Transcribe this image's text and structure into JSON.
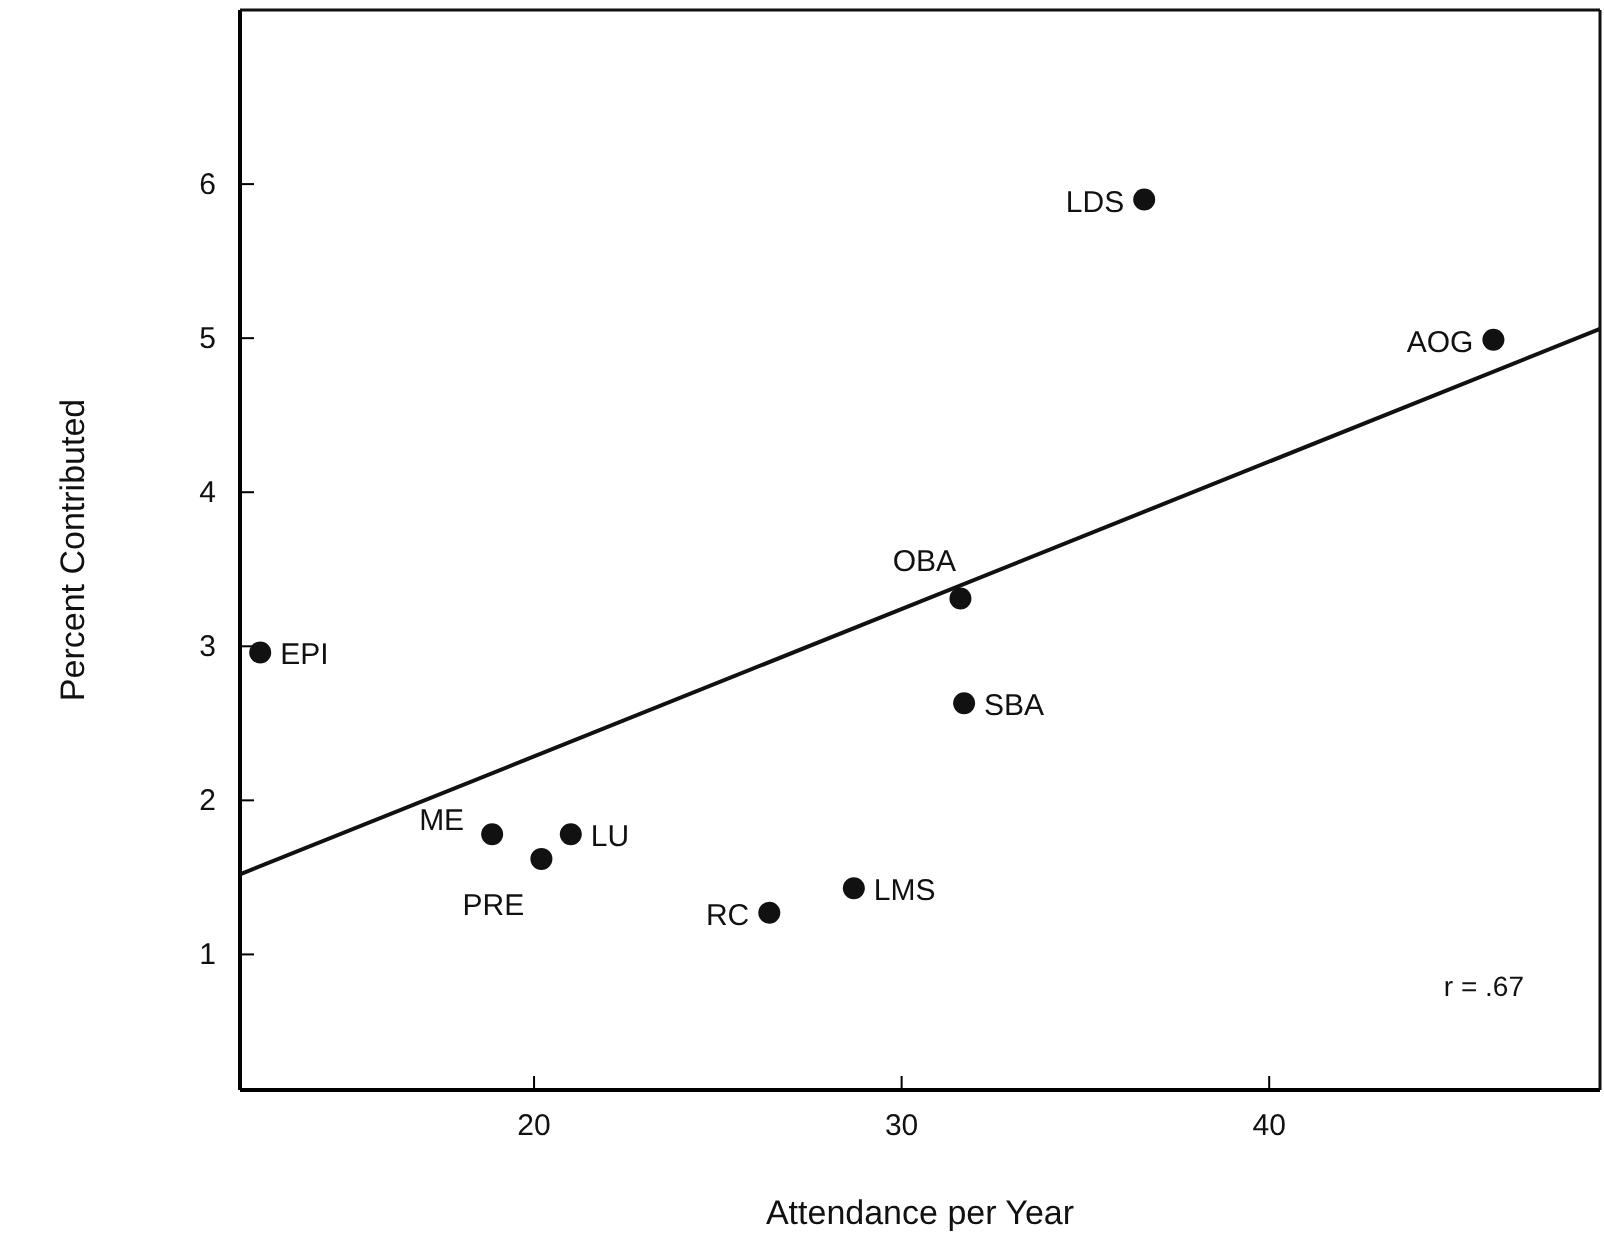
{
  "chart_data": {
    "type": "scatter",
    "xlabel": "Attendance per Year",
    "ylabel": "Percent Contributed",
    "xlim": [
      12,
      49
    ],
    "ylim": [
      0.12,
      7.13
    ],
    "xticks": [
      20,
      30,
      40
    ],
    "yticks": [
      1,
      2,
      3,
      4,
      5,
      6
    ],
    "marker": "circle",
    "grid": false,
    "series": [
      {
        "color": "#111111",
        "x": [
          36.6,
          46.1,
          31.6,
          31.7,
          12.55,
          18.86,
          21.0,
          20.2,
          26.4,
          28.7
        ],
        "values": [
          5.9,
          4.99,
          3.31,
          2.63,
          2.96,
          1.78,
          1.78,
          1.62,
          1.27,
          1.43
        ]
      },
      {
        "type": "line",
        "marker": "none",
        "color": "#111111",
        "x": [
          12,
          49
        ],
        "values": [
          1.52,
          5.06
        ]
      }
    ],
    "annotations": [
      {
        "text": "LDS",
        "x": 36.6,
        "y": 5.9
      },
      {
        "text": "AOG",
        "x": 46.1,
        "y": 4.99
      },
      {
        "text": "OBA",
        "x": 31.6,
        "y": 3.31
      },
      {
        "text": "SBA",
        "x": 31.7,
        "y": 2.63
      },
      {
        "text": "EPI",
        "x": 12.55,
        "y": 2.96
      },
      {
        "text": "ME",
        "x": 18.86,
        "y": 1.78
      },
      {
        "text": "LU",
        "x": 21.0,
        "y": 1.78
      },
      {
        "text": "PRE",
        "x": 20.2,
        "y": 1.62
      },
      {
        "text": "RC",
        "x": 26.4,
        "y": 1.27
      },
      {
        "text": "LMS",
        "x": 28.7,
        "y": 1.43
      },
      "r = .67"
    ]
  }
}
